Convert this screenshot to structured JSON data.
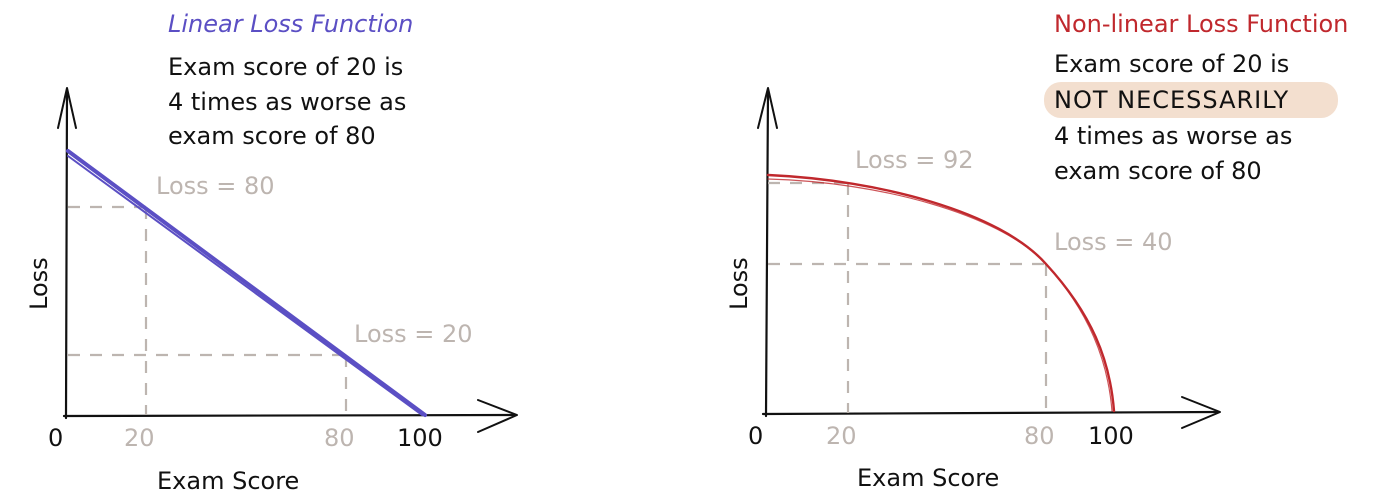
{
  "colors": {
    "linear": "#5b4fc4",
    "nonlinear": "#c0282d",
    "guide": "#bdb5b0",
    "ink": "#111111",
    "highlight": "#f3dfcf"
  },
  "left": {
    "title": "Linear Loss Function",
    "note": [
      "Exam score of 20 is",
      "4 times as worse as",
      "exam score of 80"
    ],
    "ylabel": "Loss",
    "xlabel": "Exam Score",
    "ticks": {
      "zero": "0",
      "t20": "20",
      "t80": "80",
      "t100": "100"
    },
    "loss_a": "Loss = 80",
    "loss_b": "Loss = 20"
  },
  "right": {
    "title": "Non-linear Loss Function",
    "note": [
      "Exam score of 20 is",
      "NOT NECESSARILY",
      "4 times as worse as",
      "exam score of 80"
    ],
    "ylabel": "Loss",
    "xlabel": "Exam Score",
    "ticks": {
      "zero": "0",
      "t20": "20",
      "t80": "80",
      "t100": "100"
    },
    "loss_a": "Loss = 92",
    "loss_b": "Loss = 40"
  }
}
